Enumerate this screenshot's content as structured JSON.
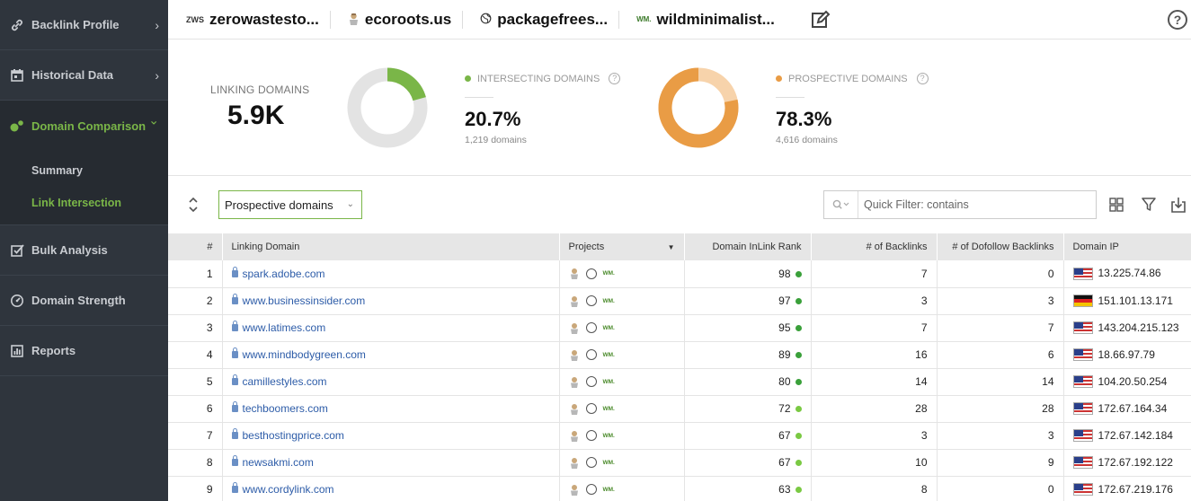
{
  "sidebar": {
    "items": [
      {
        "label": "Backlink Profile",
        "icon": "link-icon",
        "chevron": "›"
      },
      {
        "label": "Historical Data",
        "icon": "calendar-icon",
        "chevron": "›"
      },
      {
        "label": "Domain Comparison",
        "icon": "domain-comparison-icon",
        "chevron": "⌄"
      },
      {
        "label": "Bulk Analysis",
        "icon": "checklist-icon"
      },
      {
        "label": "Domain Strength",
        "icon": "gauge-icon"
      },
      {
        "label": "Reports",
        "icon": "report-icon"
      }
    ],
    "subitems": [
      {
        "label": "Summary"
      },
      {
        "label": "Link Intersection"
      }
    ]
  },
  "projects": [
    {
      "badge": "ZWS",
      "name": "zerowastesto..."
    },
    {
      "badge": "",
      "name": "ecoroots.us"
    },
    {
      "badge": "",
      "name": "packagefrees..."
    },
    {
      "badge": "WM.",
      "name": "wildminimalist..."
    }
  ],
  "stats": {
    "linking_domains_label": "LINKING DOMAINS",
    "linking_domains_value": "5.9K",
    "intersecting": {
      "label": "INTERSECTING DOMAINS",
      "pct": "20.7%",
      "sub": "1,219 domains",
      "fraction": 0.207,
      "color": "#7ab648"
    },
    "prospective": {
      "label": "PROSPECTIVE DOMAINS",
      "pct": "78.3%",
      "sub": "4,616 domains",
      "fraction": 0.783,
      "color": "#e99c45"
    }
  },
  "toolbar": {
    "select_value": "Prospective domains",
    "search_placeholder": "Quick Filter: contains"
  },
  "table": {
    "headers": [
      "#",
      "Linking Domain",
      "Projects",
      "Domain InLink Rank",
      "# of Backlinks",
      "# of Dofollow Backlinks",
      "Domain IP"
    ],
    "rows": [
      {
        "n": "1",
        "domain": "spark.adobe.com",
        "rank": "98",
        "dot": "#3aa03a",
        "backlinks": "7",
        "dofollow": "0",
        "flag": "us",
        "ip": "13.225.74.86"
      },
      {
        "n": "2",
        "domain": "www.businessinsider.com",
        "rank": "97",
        "dot": "#3aa03a",
        "backlinks": "3",
        "dofollow": "3",
        "flag": "de",
        "ip": "151.101.13.171"
      },
      {
        "n": "3",
        "domain": "www.latimes.com",
        "rank": "95",
        "dot": "#3aa03a",
        "backlinks": "7",
        "dofollow": "7",
        "flag": "us",
        "ip": "143.204.215.123"
      },
      {
        "n": "4",
        "domain": "www.mindbodygreen.com",
        "rank": "89",
        "dot": "#3aa03a",
        "backlinks": "16",
        "dofollow": "6",
        "flag": "us",
        "ip": "18.66.97.79"
      },
      {
        "n": "5",
        "domain": "camillestyles.com",
        "rank": "80",
        "dot": "#3aa03a",
        "backlinks": "14",
        "dofollow": "14",
        "flag": "us",
        "ip": "104.20.50.254"
      },
      {
        "n": "6",
        "domain": "techboomers.com",
        "rank": "72",
        "dot": "#7ac943",
        "backlinks": "28",
        "dofollow": "28",
        "flag": "us",
        "ip": "172.67.164.34"
      },
      {
        "n": "7",
        "domain": "besthostingprice.com",
        "rank": "67",
        "dot": "#7ac943",
        "backlinks": "3",
        "dofollow": "3",
        "flag": "us",
        "ip": "172.67.142.184"
      },
      {
        "n": "8",
        "domain": "newsakmi.com",
        "rank": "67",
        "dot": "#7ac943",
        "backlinks": "10",
        "dofollow": "9",
        "flag": "us",
        "ip": "172.67.192.122"
      },
      {
        "n": "9",
        "domain": "www.cordylink.com",
        "rank": "63",
        "dot": "#7ac943",
        "backlinks": "8",
        "dofollow": "0",
        "flag": "us",
        "ip": "172.67.219.176"
      }
    ]
  }
}
